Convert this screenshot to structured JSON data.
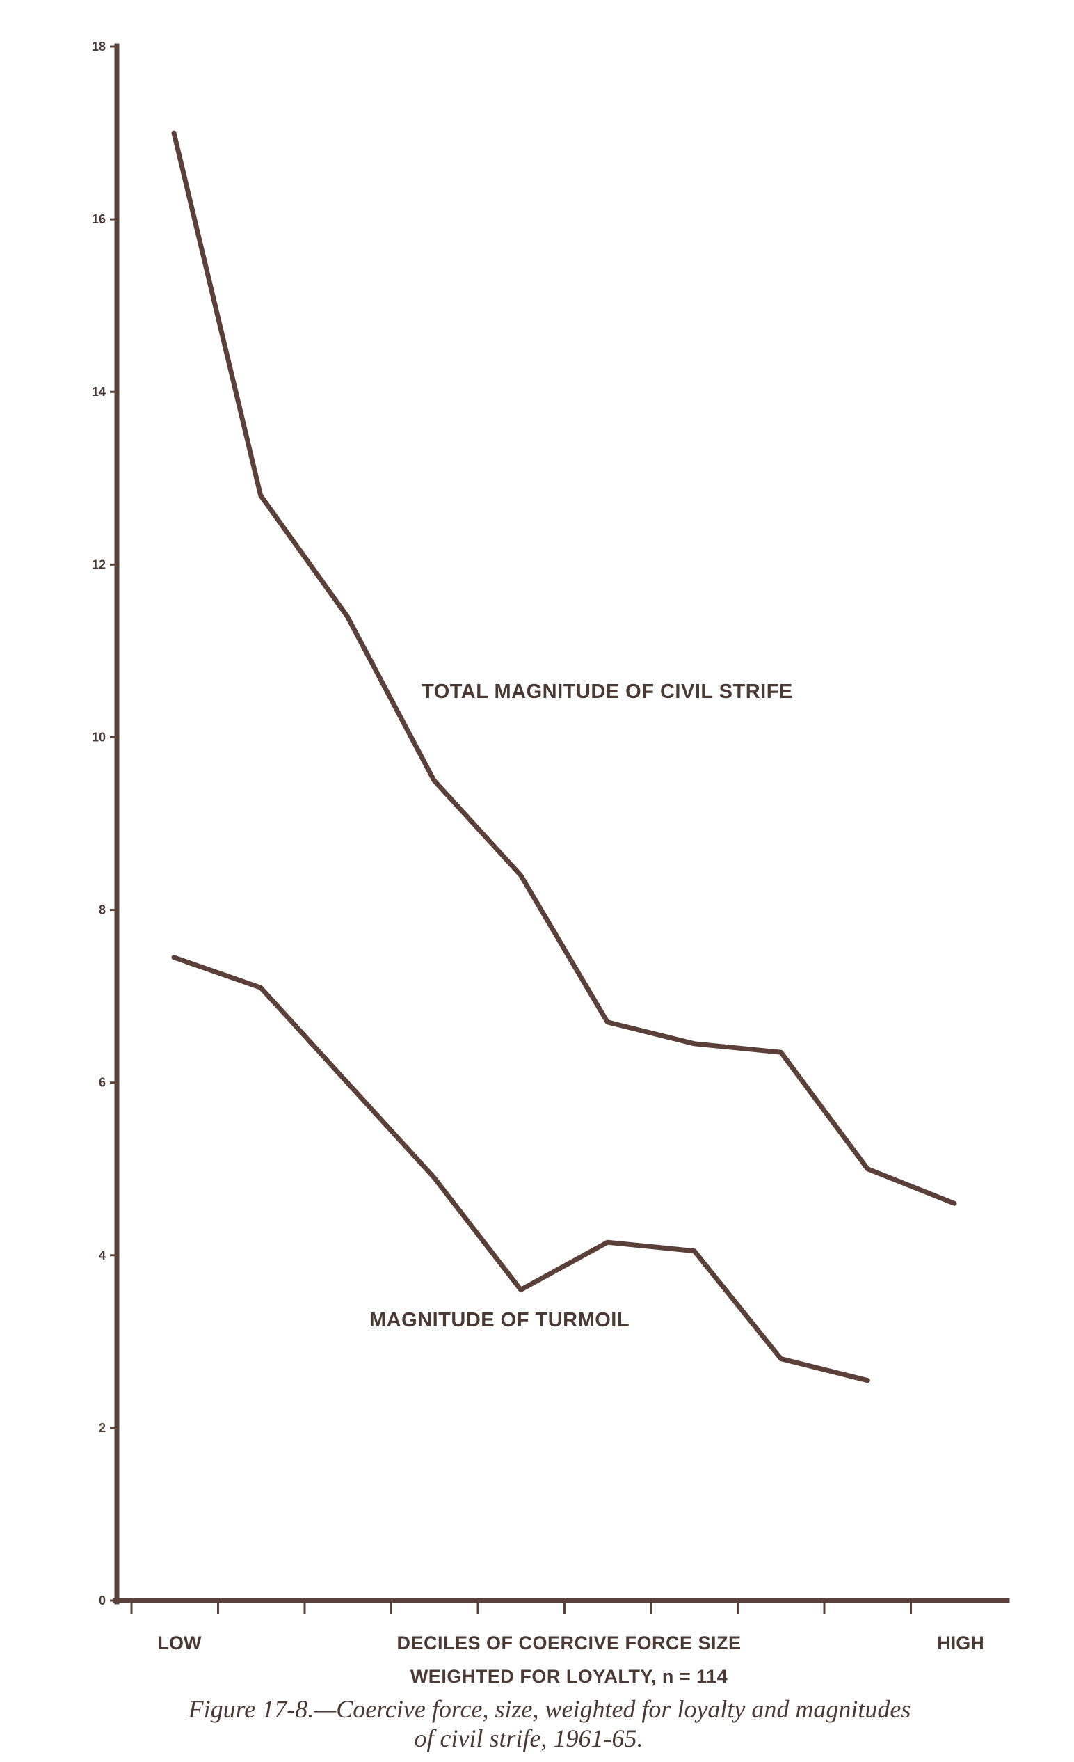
{
  "chart_data": {
    "type": "line",
    "x": [
      1,
      2,
      3,
      4,
      5,
      6,
      7,
      8,
      9,
      10
    ],
    "xlim": [
      0.2,
      10.3
    ],
    "ylim": [
      0,
      18
    ],
    "yticks": [
      0,
      2,
      4,
      6,
      8,
      10,
      12,
      14,
      16,
      18
    ],
    "x_tick_labels": {
      "low": "LOW",
      "high": "HIGH"
    },
    "xlabel": "DECILES OF COERCIVE FORCE SIZE",
    "xlabel_line2": "WEIGHTED FOR LOYALTY, n = 114",
    "series": [
      {
        "name": "TOTAL MAGNITUDE OF CIVIL STRIFE",
        "values": [
          17.0,
          12.8,
          11.4,
          9.5,
          8.4,
          6.7,
          6.45,
          6.35,
          5.0,
          4.6
        ]
      },
      {
        "name": "MAGNITUDE OF TURMOIL",
        "values": [
          7.45,
          7.1,
          6.0,
          4.9,
          3.6,
          4.15,
          4.05,
          2.8,
          2.55,
          null
        ]
      }
    ],
    "grid": false,
    "line_color": "#5a4038"
  },
  "caption": {
    "line1": "Figure 17-8.—Coercive force, size, weighted for loyalty and magnitudes",
    "line2": "of civil strife, 1961-65."
  }
}
